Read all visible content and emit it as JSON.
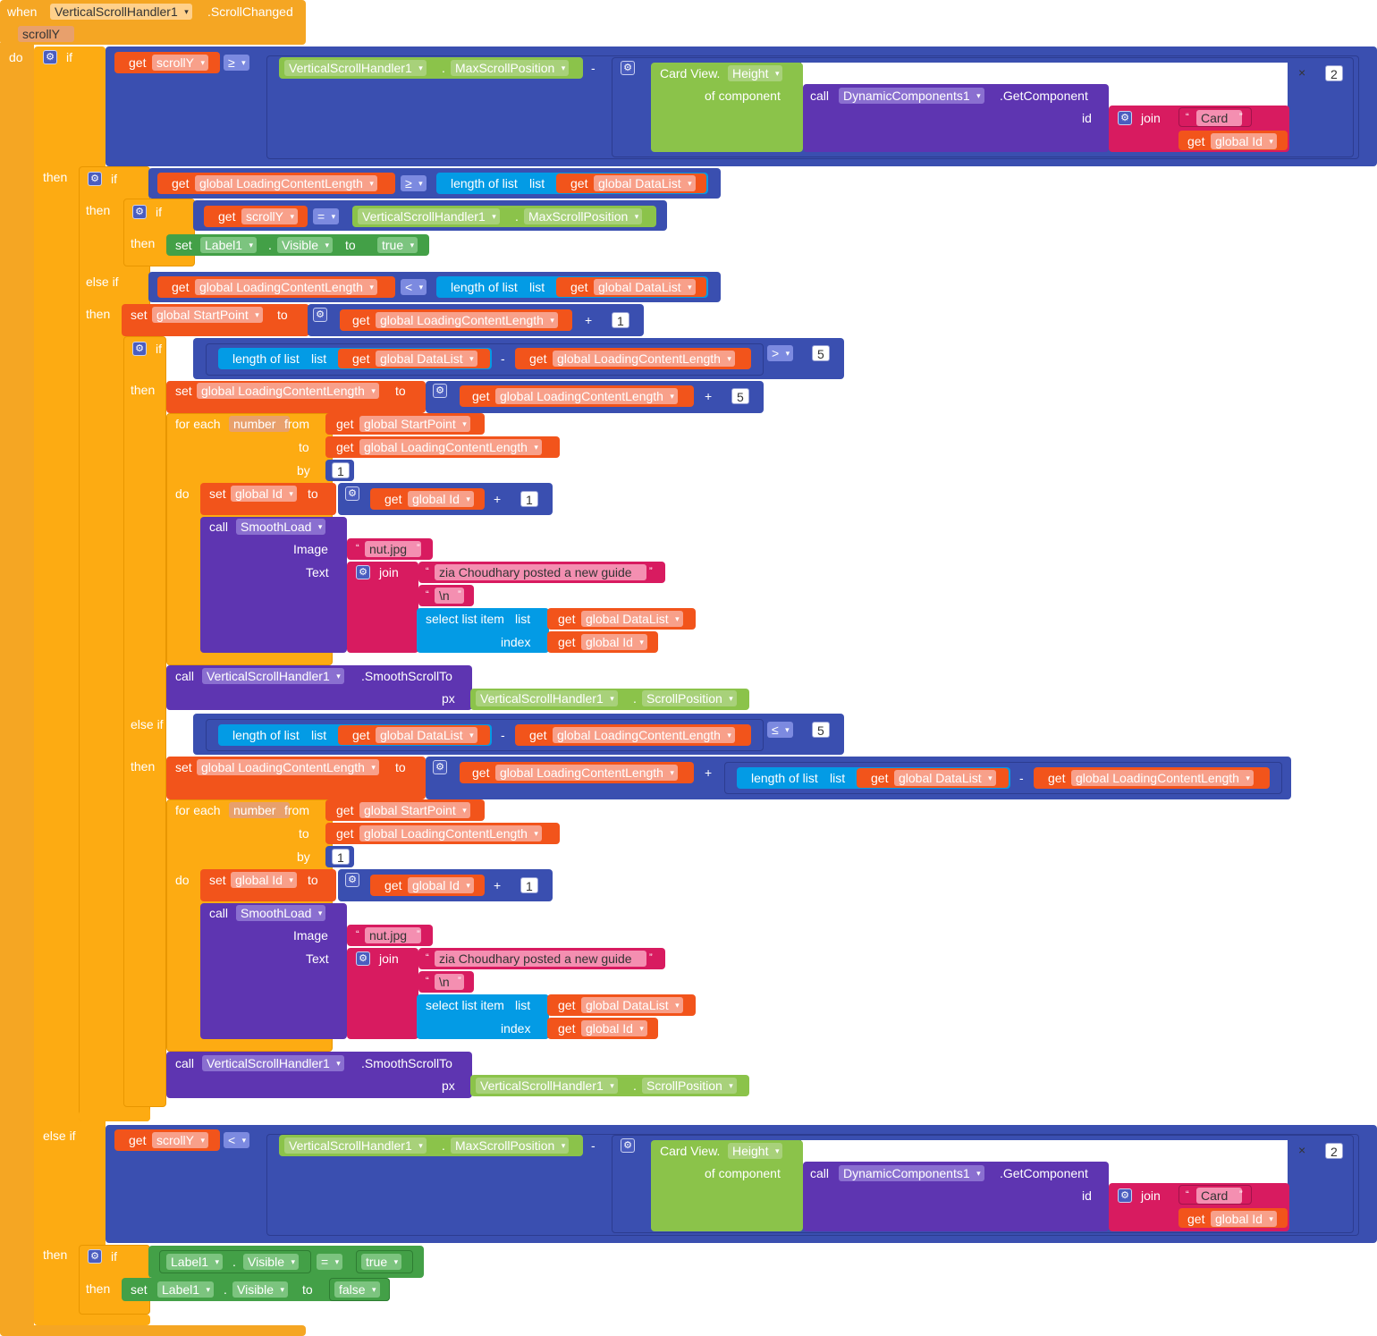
{
  "event": {
    "when": "when",
    "component": "VerticalScrollHandler1",
    "event_name": ".ScrollChanged",
    "param": "scrollY",
    "do": "do"
  },
  "kw": {
    "if": "if",
    "then": "then",
    "else_if": "else if",
    "get": "get",
    "set": "set",
    "to": "to",
    "call": "call",
    "join": "join",
    "id": "id",
    "of_component": "of component",
    "length_of_list": "length of list",
    "list": "list",
    "for_each": "for each",
    "from": "from",
    "by": "by",
    "do": "do",
    "select_list_item": "select list item",
    "index": "index",
    "image": "Image",
    "text": "Text",
    "px": "px",
    "dot": ".",
    "minus": "-",
    "plus": "+",
    "times": "×",
    "quote_open": "“",
    "quote_close": "”"
  },
  "ops": {
    "gte": "≥",
    "lt": "<",
    "eq": "=",
    "gt": ">",
    "lte": "≤"
  },
  "vars": {
    "scrollY": "scrollY",
    "loading": "global LoadingContentLength",
    "datalist": "global DataList",
    "startpoint": "global StartPoint",
    "id": "global Id",
    "number": "number"
  },
  "comps": {
    "vsh": "VerticalScrollHandler1",
    "maxpos": "MaxScrollPosition",
    "scrollpos": "ScrollPosition",
    "cardview": "Card View.",
    "height": "Height",
    "dyn": "DynamicComponents1",
    "getcomp": ".GetComponent",
    "label1": "Label1",
    "visible": "Visible",
    "smoothload": "SmoothLoad",
    "smoothscroll": ".SmoothScrollTo"
  },
  "vals": {
    "two": "2",
    "one": "1",
    "five": "5",
    "card": "Card",
    "true": "true",
    "false": "false",
    "nut": "nut.jpg",
    "zia": "zia Choudhary posted a new guide",
    "nl": "\\n"
  },
  "colors": {
    "event": "#f5a623",
    "control": "#fdab12",
    "math": "#3a4fb0",
    "variable": "#f2541b",
    "component": "#8bc34a",
    "procedure": "#5e35b1",
    "text": "#d81b60",
    "list": "#039be5",
    "setter": "#43a047"
  },
  "icons": {
    "mutator": "gear-icon",
    "dropdown": "chevron-down-icon"
  }
}
